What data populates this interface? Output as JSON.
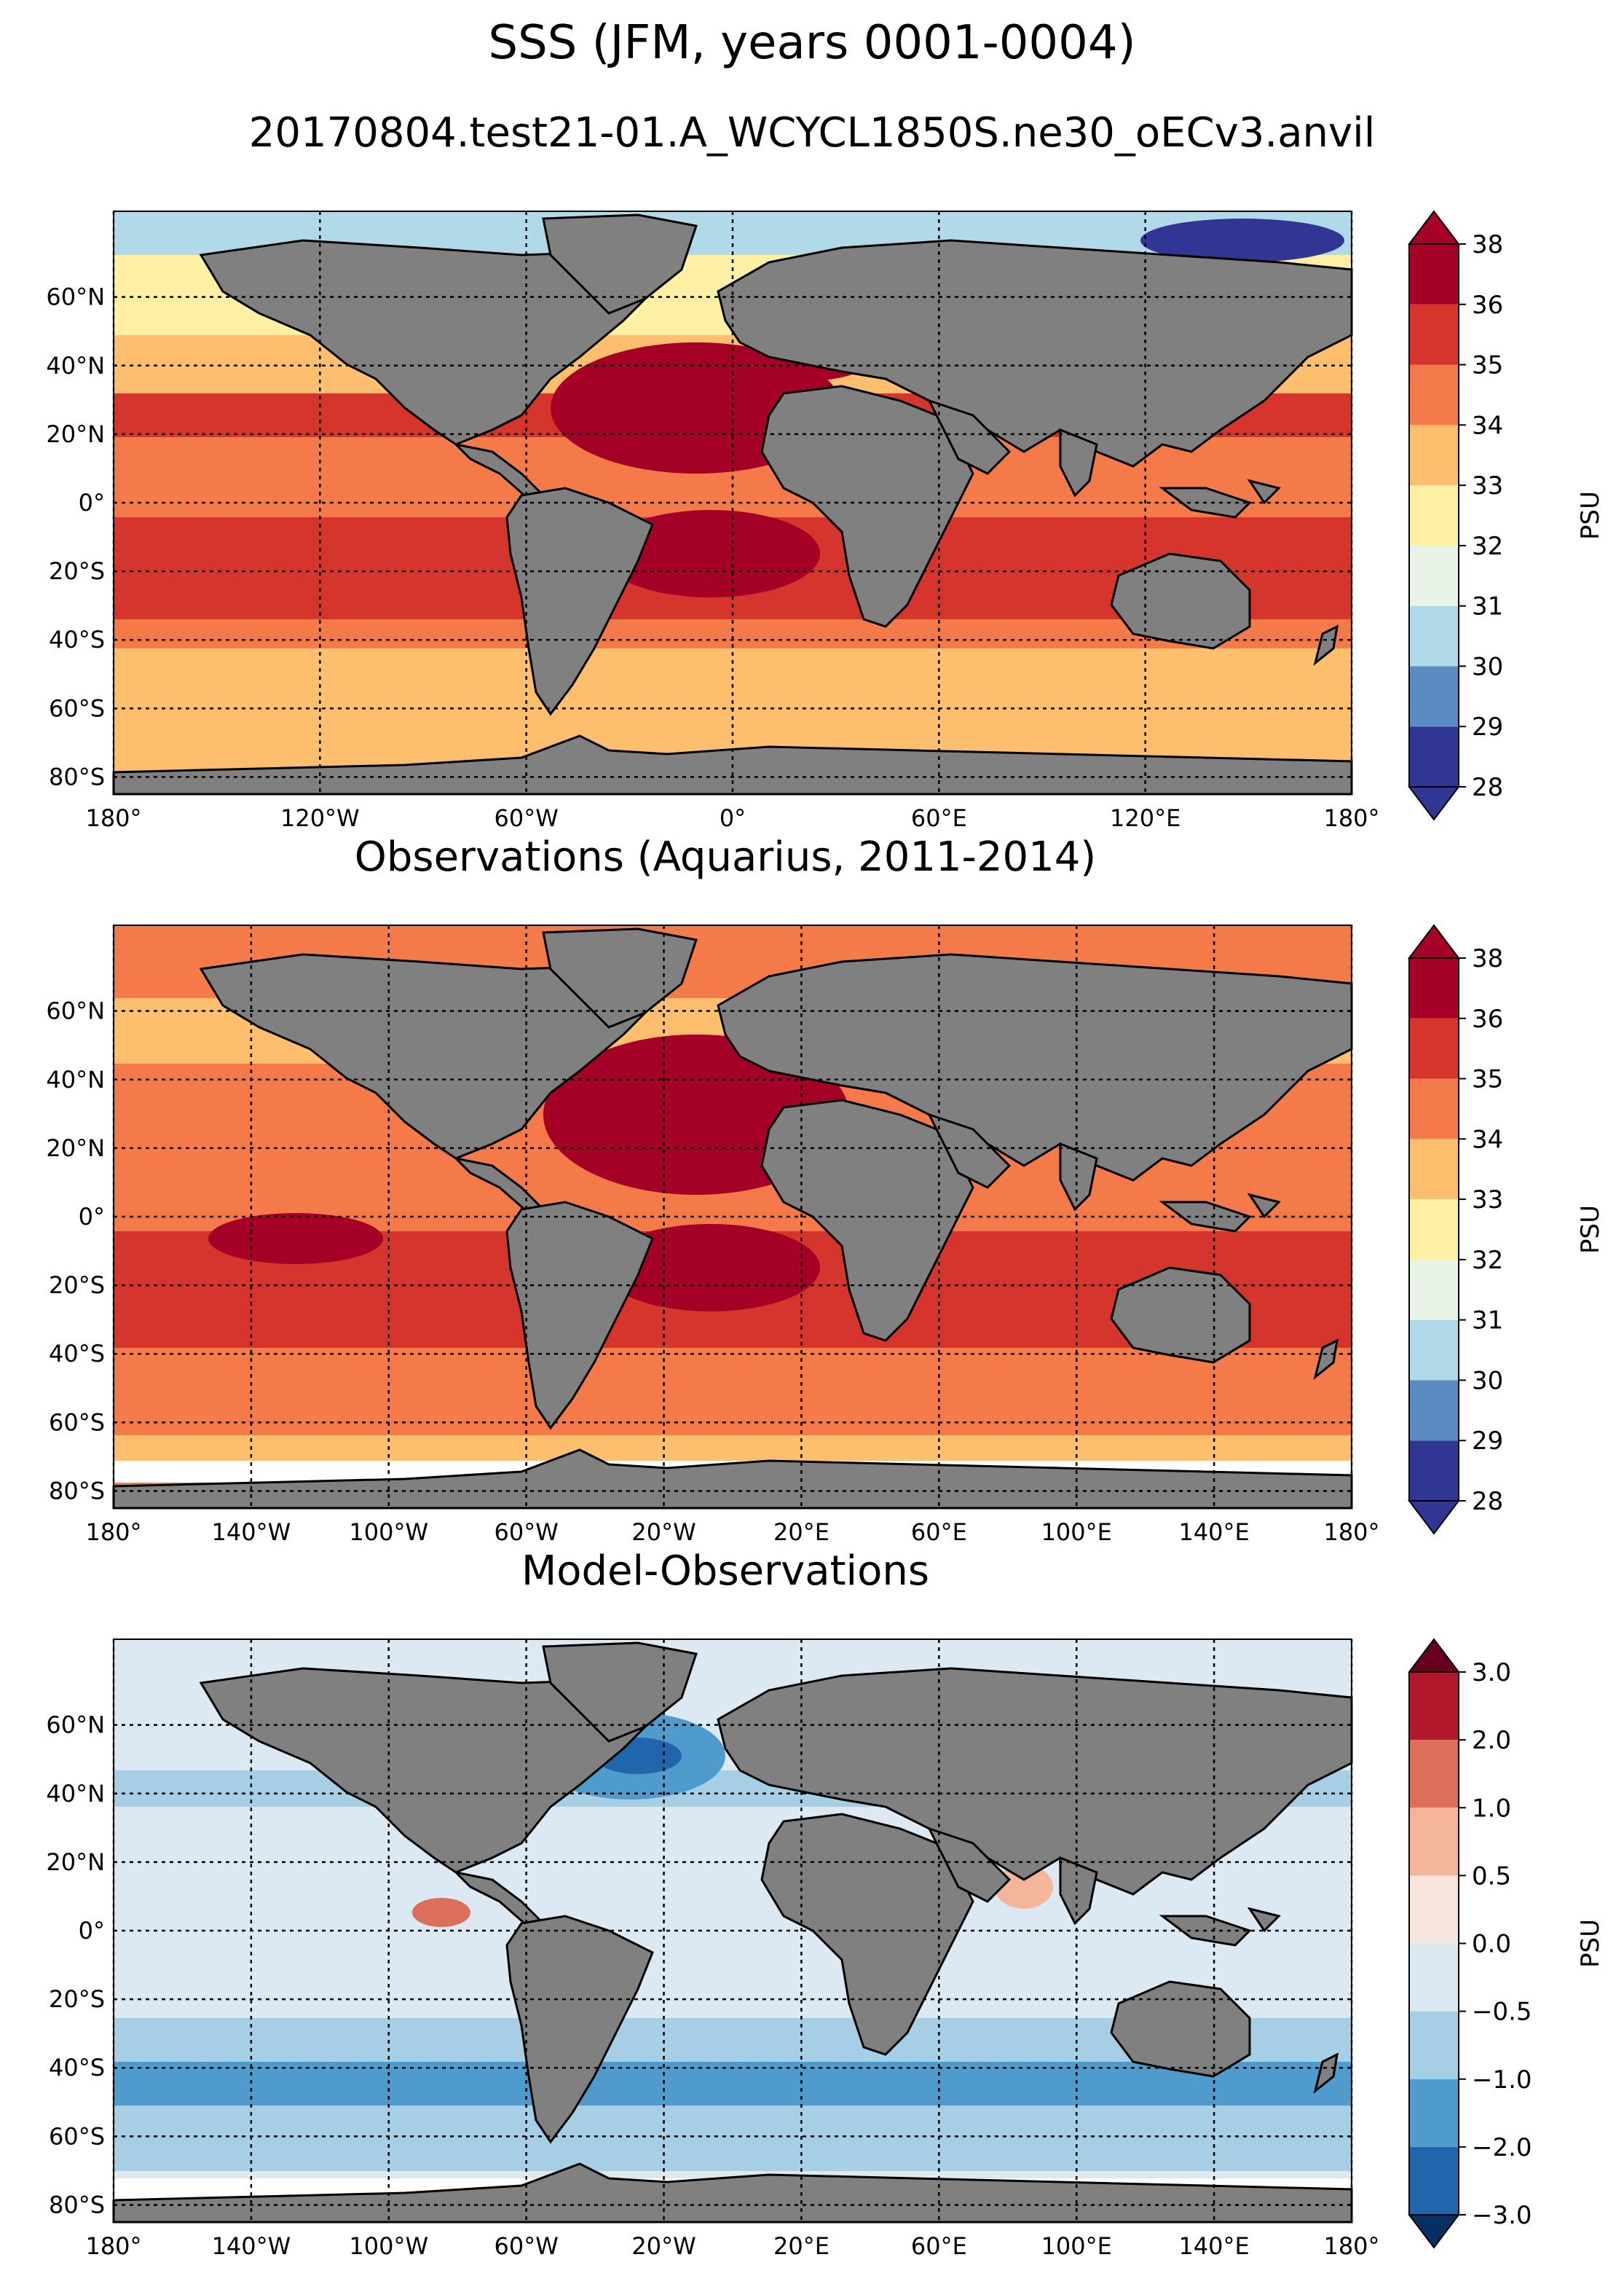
{
  "figure": {
    "title": "SSS (JFM, years 0001-0004)",
    "subtitle": "20170804.test21-01.A_WCYCL1850S.ne30_oECv3.anvil"
  },
  "panels": [
    {
      "id": "model",
      "title": "",
      "lon_labels": [
        "180°",
        "120°W",
        "60°W",
        "0°",
        "60°E",
        "120°E",
        "180°"
      ],
      "lon_values": [
        -180,
        -120,
        -60,
        0,
        60,
        120,
        180
      ],
      "lat_labels": [
        "60°N",
        "40°N",
        "20°N",
        "0°",
        "20°S",
        "40°S",
        "60°S",
        "80°S"
      ],
      "lat_values": [
        60,
        40,
        20,
        0,
        -20,
        -40,
        -60,
        -80
      ],
      "colorbar": {
        "label": "PSU",
        "ticks": [
          "28",
          "29",
          "30",
          "31",
          "32",
          "33",
          "34",
          "35",
          "36",
          "38"
        ],
        "colors": [
          "#313695",
          "#5a8cc2",
          "#b0daea",
          "#e8f4e6",
          "#fdefa4",
          "#fdbe6e",
          "#f57a4a",
          "#d6352b",
          "#a50026"
        ],
        "extend": "both"
      }
    },
    {
      "id": "obs",
      "title": "Observations (Aquarius, 2011-2014)",
      "lon_labels": [
        "180°",
        "140°W",
        "100°W",
        "60°W",
        "20°W",
        "20°E",
        "60°E",
        "100°E",
        "140°E",
        "180°"
      ],
      "lon_values": [
        -180,
        -140,
        -100,
        -60,
        -20,
        20,
        60,
        100,
        140,
        180
      ],
      "lat_labels": [
        "60°N",
        "40°N",
        "20°N",
        "0°",
        "20°S",
        "40°S",
        "60°S",
        "80°S"
      ],
      "lat_values": [
        60,
        40,
        20,
        0,
        -20,
        -40,
        -60,
        -80
      ],
      "colorbar": {
        "label": "PSU",
        "ticks": [
          "28",
          "29",
          "30",
          "31",
          "32",
          "33",
          "34",
          "35",
          "36",
          "38"
        ],
        "colors": [
          "#313695",
          "#5a8cc2",
          "#b0daea",
          "#e8f4e6",
          "#fdefa4",
          "#fdbe6e",
          "#f57a4a",
          "#d6352b",
          "#a50026"
        ],
        "extend": "both"
      }
    },
    {
      "id": "diff",
      "title": "Model-Observations",
      "lon_labels": [
        "180°",
        "140°W",
        "100°W",
        "60°W",
        "20°W",
        "20°E",
        "60°E",
        "100°E",
        "140°E",
        "180°"
      ],
      "lon_values": [
        -180,
        -140,
        -100,
        -60,
        -20,
        20,
        60,
        100,
        140,
        180
      ],
      "lat_labels": [
        "60°N",
        "40°N",
        "20°N",
        "0°",
        "20°S",
        "40°S",
        "60°S",
        "80°S"
      ],
      "lat_values": [
        60,
        40,
        20,
        0,
        -20,
        -40,
        -60,
        -80
      ],
      "colorbar": {
        "label": "PSU",
        "ticks": [
          "−3.0",
          "−2.0",
          "−1.0",
          "−0.5",
          "0.0",
          "0.5",
          "1.0",
          "2.0",
          "3.0"
        ],
        "colors": [
          "#2166ac",
          "#4f9bcb",
          "#a6cee4",
          "#dce9f2",
          "#f7e4dc",
          "#f5b59a",
          "#dd6e5a",
          "#b2182b"
        ],
        "extend": "both"
      }
    }
  ],
  "colors": {
    "land": "#808080",
    "ocean_mid": "#f47a4a",
    "ocean_high": "#a50026",
    "ocean_low": "#fdbe6e",
    "ocean_fresh": "#b0daea",
    "diff_neutral": "#dce9f2",
    "diff_neg": "#a6cee4",
    "diff_strongneg": "#4f9bcb",
    "diff_pos": "#f5b59a",
    "diff_strongpos": "#dd6e5a"
  }
}
